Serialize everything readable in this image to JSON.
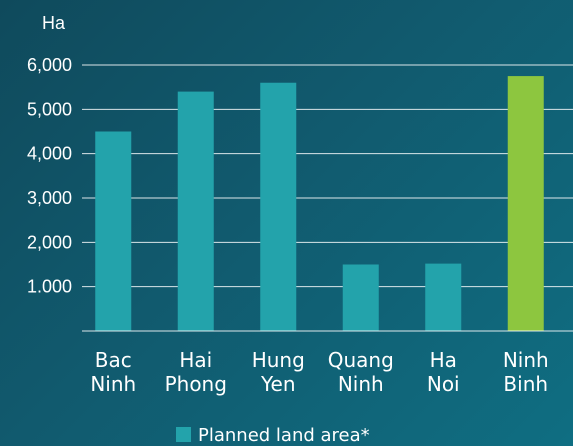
{
  "chart_data": {
    "type": "bar",
    "unit_label": "Ha",
    "categories": [
      [
        "Bac",
        "Ninh"
      ],
      [
        "Hai",
        "Phong"
      ],
      [
        "Hung",
        "Yen"
      ],
      [
        "Quang",
        "Ninh"
      ],
      [
        "Ha",
        "Noi"
      ],
      [
        "Ninh",
        "Binh"
      ]
    ],
    "values": [
      4500,
      5400,
      5600,
      1500,
      1520,
      5750
    ],
    "bar_colors": [
      "#23a3ab",
      "#23a3ab",
      "#23a3ab",
      "#23a3ab",
      "#23a3ab",
      "#8dc63f"
    ],
    "ylim": [
      0,
      6000
    ],
    "yticks": [
      {
        "value": 6000,
        "label": "6,000"
      },
      {
        "value": 5000,
        "label": "5,000"
      },
      {
        "value": 4000,
        "label": "4,000"
      },
      {
        "value": 3000,
        "label": "3,000"
      },
      {
        "value": 2000,
        "label": "2,000"
      },
      {
        "value": 1000,
        "label": "1.000"
      }
    ],
    "grid": true,
    "legend": [
      {
        "label": "Planned land area*",
        "color": "#23a3ab"
      }
    ],
    "legend_position": "bottom"
  }
}
